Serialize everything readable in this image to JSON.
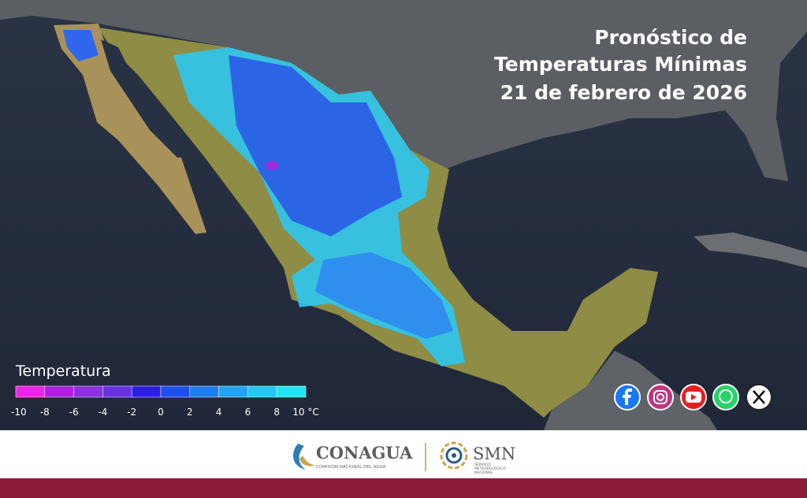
{
  "title": {
    "lines": [
      "Pronóstico de",
      "Temperaturas Mínimas",
      "21 de febrero de 2026"
    ]
  },
  "legend": {
    "title": "Temperatura",
    "ticks": [
      "-10",
      "-8",
      "-6",
      "-4",
      "-2",
      "0",
      "2",
      "4",
      "6",
      "8",
      "10 °C"
    ],
    "colors": [
      "#ee22e6",
      "#b01fe0",
      "#8e2ee6",
      "#6a2fe8",
      "#2a1ee6",
      "#1d4ef0",
      "#1f7ff2",
      "#22a5f4",
      "#20c8f2",
      "#1ee6ef"
    ]
  },
  "footer": {
    "conagua": "CONAGUA",
    "conagua_sub": "COMISIÓN NACIONAL DEL AGUA",
    "smn": "SMN",
    "smn_sub": [
      "SERVICIO",
      "METEOROLÓGICO",
      "NACIONAL"
    ]
  }
}
